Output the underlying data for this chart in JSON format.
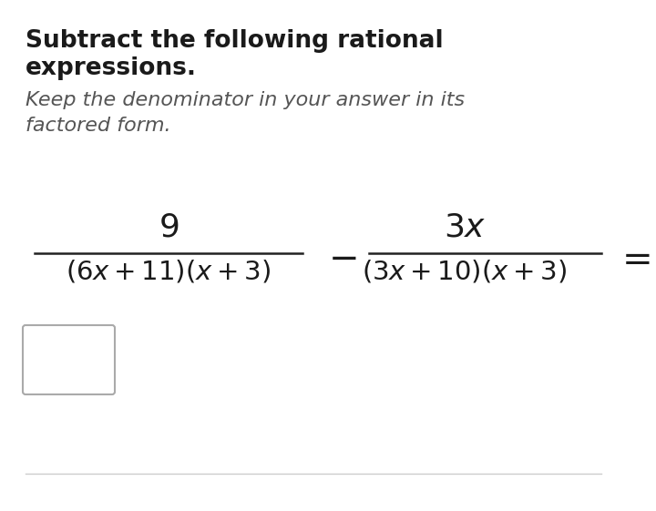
{
  "bg_color": "#ffffff",
  "title_line1": "Subtract the following rational",
  "title_line2": "expressions.",
  "subtitle_line1": "Keep the denominator in your answer in its",
  "subtitle_line2": "factored form.",
  "title_fontsize": 19,
  "subtitle_fontsize": 16,
  "math_fontsize": 21,
  "fig_width": 7.2,
  "fig_height": 5.61,
  "title_color": "#1a1a1a",
  "subtitle_color": "#555555",
  "line_color": "#222222",
  "box_edge_color": "#aaaaaa",
  "bottom_line_color": "#cccccc",
  "frac1_num": "$9$",
  "frac1_den": "$(6x+11)(x+3)$",
  "frac2_num": "$3x$",
  "frac2_den": "$(3x+10)(x+3)$"
}
